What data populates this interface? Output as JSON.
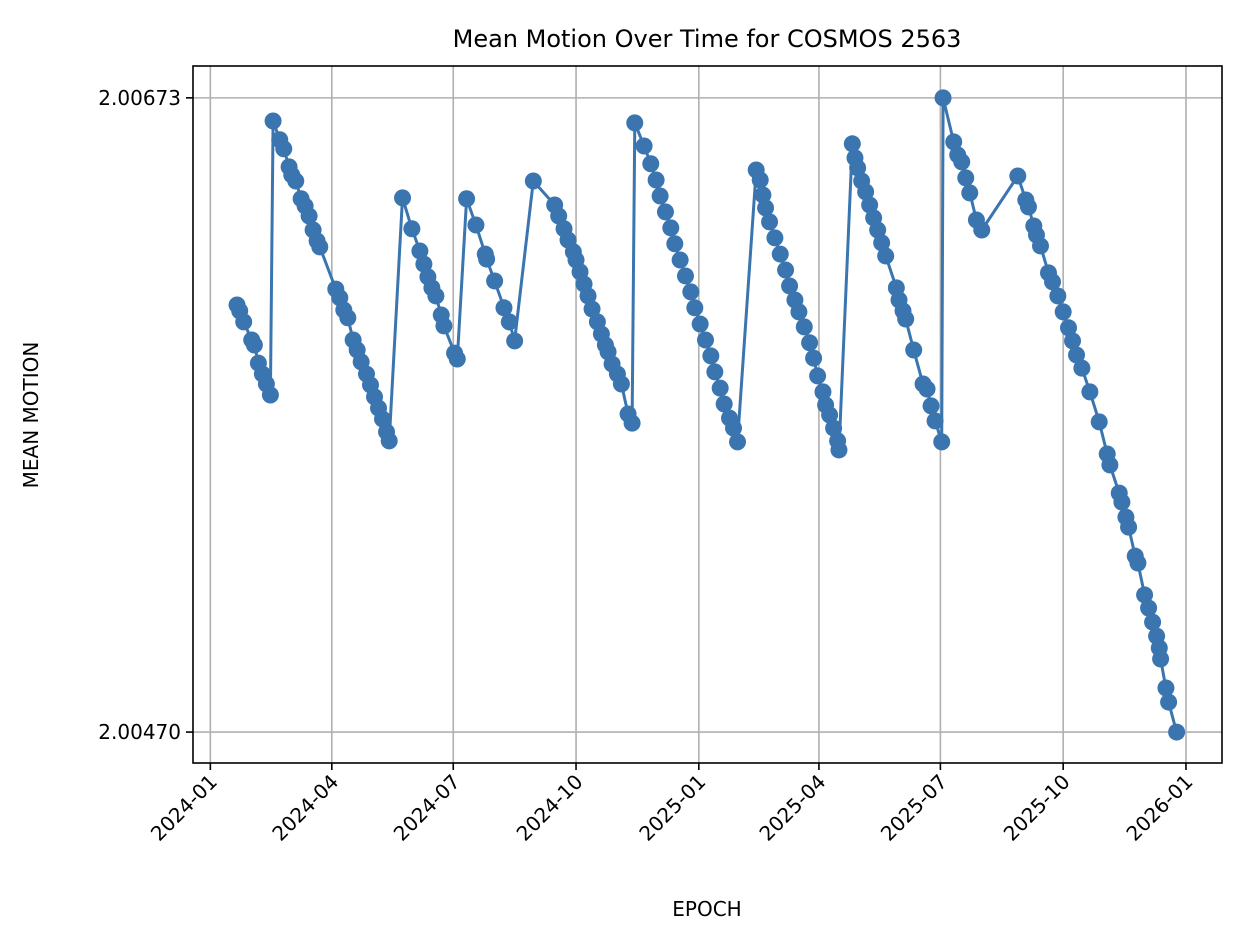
{
  "chart_data": {
    "type": "line",
    "title": "Mean Motion Over Time for COSMOS 2563",
    "xlabel": "EPOCH",
    "ylabel": "MEAN MOTION",
    "x_origin_date": "2024-01-01",
    "x_unit": "days",
    "xlim": [
      -13,
      758
    ],
    "ylim": [
      2.004601,
      2.006832
    ],
    "grid": true,
    "markers": true,
    "color": "#3a75b0",
    "x_ticks": [
      {
        "label": "2024-01",
        "value": 0
      },
      {
        "label": "2024-04",
        "value": 91
      },
      {
        "label": "2024-07",
        "value": 182
      },
      {
        "label": "2024-10",
        "value": 274
      },
      {
        "label": "2025-01",
        "value": 366
      },
      {
        "label": "2025-04",
        "value": 456
      },
      {
        "label": "2025-07",
        "value": 547
      },
      {
        "label": "2025-10",
        "value": 639
      },
      {
        "label": "2026-01",
        "value": 731
      }
    ],
    "y_ticks": [
      {
        "label": "2.00673",
        "value": 2.00673
      },
      {
        "label": "2.00470",
        "value": 2.0047
      }
    ],
    "series": [
      {
        "name": "MEAN_MOTION",
        "x": [
          20,
          22,
          25,
          31,
          33,
          36,
          39,
          42,
          45,
          47,
          52,
          55,
          59,
          61,
          64,
          68,
          71,
          74,
          77,
          80,
          82,
          94,
          97,
          100,
          103,
          107,
          110,
          113,
          117,
          120,
          123,
          126,
          129,
          132,
          134,
          144,
          151,
          157,
          160,
          163,
          166,
          169,
          173,
          175,
          183,
          185,
          192,
          199,
          206,
          207,
          213,
          220,
          224,
          228,
          242,
          258,
          261,
          265,
          268,
          272,
          274,
          277,
          280,
          283,
          286,
          290,
          293,
          296,
          298,
          301,
          305,
          308,
          313,
          316,
          318,
          325,
          330,
          334,
          337,
          341,
          345,
          348,
          352,
          356,
          360,
          363,
          367,
          371,
          375,
          378,
          382,
          385,
          389,
          392,
          395,
          409,
          412,
          414,
          416,
          419,
          423,
          427,
          431,
          434,
          438,
          441,
          445,
          449,
          452,
          455,
          459,
          461,
          464,
          467,
          470,
          471,
          481,
          483,
          485,
          488,
          491,
          494,
          497,
          500,
          503,
          506,
          514,
          516,
          519,
          521,
          527,
          534,
          537,
          540,
          543,
          548,
          549,
          557,
          560,
          563,
          566,
          569,
          574,
          578,
          605,
          611,
          613,
          617,
          619,
          622,
          628,
          631,
          635,
          639,
          643,
          646,
          649,
          653,
          659,
          666,
          672,
          674,
          681,
          683,
          686,
          688,
          693,
          695,
          700,
          703,
          706,
          709,
          711,
          712,
          716,
          718,
          724
        ],
        "y": [
          2.006067,
          2.006048,
          2.006013,
          2.005955,
          2.005939,
          2.005881,
          2.005846,
          2.005814,
          2.005779,
          2.006656,
          2.006596,
          2.006567,
          2.006509,
          2.006483,
          2.006464,
          2.006407,
          2.006384,
          2.006352,
          2.006307,
          2.006272,
          2.006253,
          2.006118,
          2.00609,
          2.006051,
          2.006026,
          2.005955,
          2.005923,
          2.005885,
          2.005846,
          2.005811,
          2.005773,
          2.005737,
          2.005702,
          2.005661,
          2.005632,
          2.00641,
          2.006311,
          2.00624,
          2.006198,
          2.006157,
          2.006122,
          2.006096,
          2.006035,
          2.006,
          2.005913,
          2.005894,
          2.006407,
          2.006323,
          2.00623,
          2.006214,
          2.006144,
          2.006058,
          2.006013,
          2.005952,
          2.006464,
          2.006387,
          2.006352,
          2.006311,
          2.006275,
          2.006237,
          2.006211,
          2.006173,
          2.006134,
          2.006096,
          2.006054,
          2.006013,
          2.005974,
          2.005939,
          2.005917,
          2.005878,
          2.005846,
          2.005814,
          2.005718,
          2.005689,
          2.00665,
          2.006576,
          2.006519,
          2.006467,
          2.006416,
          2.006365,
          2.006314,
          2.006263,
          2.006211,
          2.00616,
          2.006109,
          2.006058,
          2.006006,
          2.005955,
          2.005904,
          2.005853,
          2.005801,
          2.00575,
          2.005705,
          2.005673,
          2.005629,
          2.006499,
          2.006467,
          2.006419,
          2.006378,
          2.006333,
          2.006282,
          2.00623,
          2.006179,
          2.006128,
          2.006083,
          2.006045,
          2.005997,
          2.005946,
          2.005897,
          2.00584,
          2.005789,
          2.005747,
          2.005715,
          2.005673,
          2.005632,
          2.005603,
          2.006583,
          2.006538,
          2.006506,
          2.006464,
          2.006429,
          2.006387,
          2.006346,
          2.006307,
          2.006266,
          2.006224,
          2.006122,
          2.006083,
          2.006048,
          2.006022,
          2.005923,
          2.005814,
          2.005798,
          2.005744,
          2.005696,
          2.005629,
          2.00673,
          2.006589,
          2.006547,
          2.006525,
          2.006474,
          2.006426,
          2.006339,
          2.006307,
          2.00648,
          2.006403,
          2.006381,
          2.00632,
          2.006291,
          2.006256,
          2.00617,
          2.006141,
          2.006096,
          2.006045,
          2.005994,
          2.005952,
          2.005907,
          2.005865,
          2.005789,
          2.005693,
          2.00559,
          2.005555,
          2.005465,
          2.005436,
          2.005388,
          2.005356,
          2.005263,
          2.005241,
          2.005139,
          2.005097,
          2.005052,
          2.005007,
          2.004969,
          2.004934,
          2.004841,
          2.004796,
          2.0047
        ]
      }
    ]
  }
}
